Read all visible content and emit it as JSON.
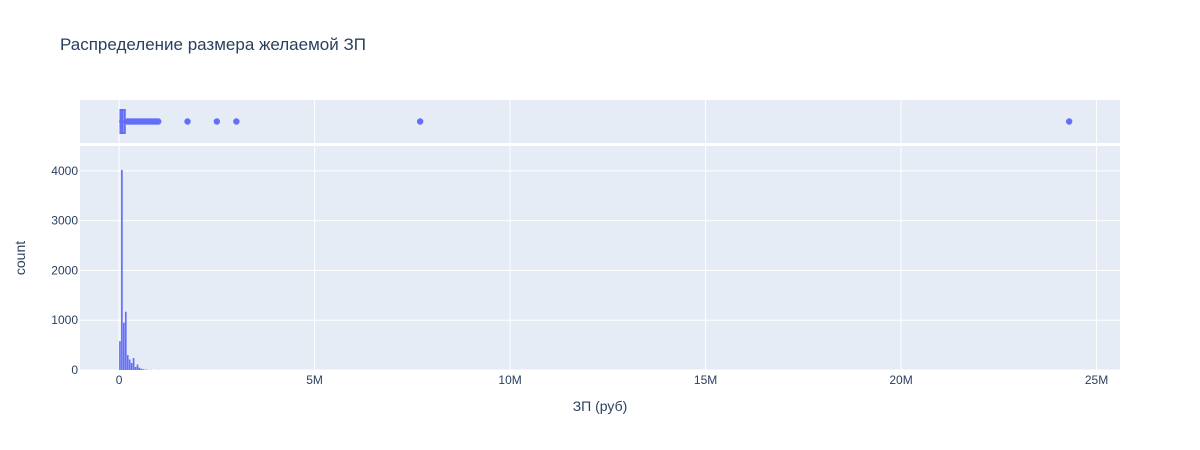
{
  "chart_data": {
    "type": "histogram",
    "title": "Распределение размера желаемой ЗП",
    "xlabel": "ЗП (руб)",
    "ylabel": "count",
    "x_range": [
      -1000000,
      25600000
    ],
    "y_range": [
      0,
      4500
    ],
    "x_ticks": [
      {
        "value": 0,
        "label": "0"
      },
      {
        "value": 5000000,
        "label": "5M"
      },
      {
        "value": 10000000,
        "label": "10M"
      },
      {
        "value": 15000000,
        "label": "15M"
      },
      {
        "value": 20000000,
        "label": "20M"
      },
      {
        "value": 25000000,
        "label": "25M"
      }
    ],
    "y_ticks": [
      {
        "value": 0,
        "label": "0"
      },
      {
        "value": 1000,
        "label": "1000"
      },
      {
        "value": 2000,
        "label": "2000"
      },
      {
        "value": 3000,
        "label": "3000"
      },
      {
        "value": 4000,
        "label": "4000"
      }
    ],
    "bin_width": 50000,
    "histogram_bins": [
      {
        "start": 0,
        "count": 580
      },
      {
        "start": 50000,
        "count": 4020
      },
      {
        "start": 100000,
        "count": 950
      },
      {
        "start": 150000,
        "count": 1170
      },
      {
        "start": 200000,
        "count": 300
      },
      {
        "start": 250000,
        "count": 210
      },
      {
        "start": 300000,
        "count": 140
      },
      {
        "start": 350000,
        "count": 240
      },
      {
        "start": 400000,
        "count": 60
      },
      {
        "start": 450000,
        "count": 110
      },
      {
        "start": 500000,
        "count": 45
      },
      {
        "start": 550000,
        "count": 25
      },
      {
        "start": 600000,
        "count": 15
      },
      {
        "start": 650000,
        "count": 8
      },
      {
        "start": 700000,
        "count": 5
      },
      {
        "start": 800000,
        "count": 3
      },
      {
        "start": 1000000,
        "count": 2
      }
    ],
    "box_marginal": {
      "whisker_low": 0,
      "q1": 60000,
      "median": 80000,
      "q3": 120000,
      "whisker_high": 210000,
      "outliers": [
        220000,
        260000,
        300000,
        350000,
        400000,
        450000,
        500000,
        550000,
        600000,
        650000,
        700000,
        750000,
        800000,
        850000,
        900000,
        950000,
        1000000,
        1750000,
        2500000,
        3000000,
        7700000,
        24300000
      ]
    },
    "colors": {
      "series": "#636efa",
      "plot_bg": "#e5ecf6",
      "grid": "#ffffff",
      "text": "#2a3f5f"
    }
  }
}
